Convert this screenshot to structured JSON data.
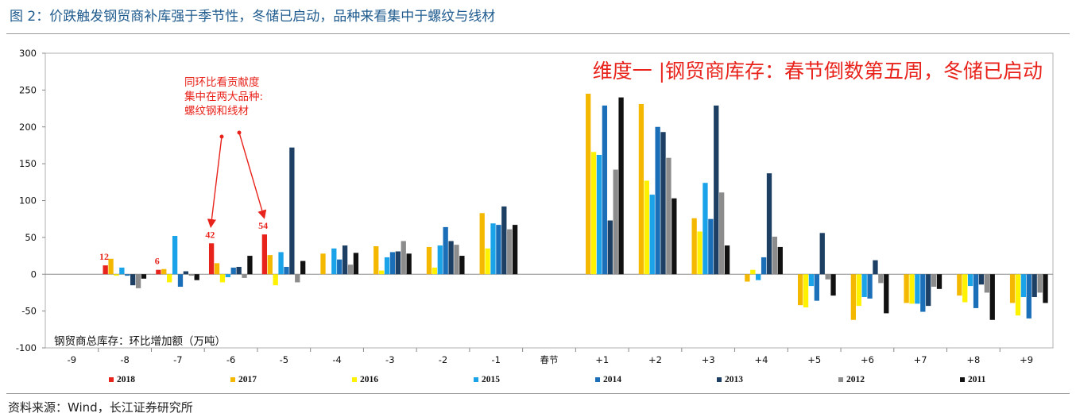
{
  "figure_title": "图 2：价跌触发钢贸商补库强于季节性，冬储已启动，品种来看集中于螺纹与线材",
  "source": "资料来源：Wind，长江证券研究所",
  "chart_data": {
    "type": "bar",
    "title": "维度一 |钢贸商库存：春节倒数第五周，冬储已启动",
    "ylabel_note": "钢贸商总库存：环比增加额（万吨）",
    "ylim": [
      -100,
      300
    ],
    "yticks": [
      -100,
      -50,
      0,
      50,
      100,
      150,
      200,
      250,
      300
    ],
    "categories": [
      "-9",
      "-8",
      "-7",
      "-6",
      "-5",
      "-4",
      "-3",
      "-2",
      "-1",
      "春节",
      "+1",
      "+2",
      "+3",
      "+4",
      "+5",
      "+6",
      "+7",
      "+8",
      "+9"
    ],
    "series": [
      {
        "name": "2018",
        "color": "#e8231b",
        "values": [
          null,
          12,
          6,
          42,
          54,
          null,
          null,
          null,
          null,
          null,
          null,
          null,
          null,
          null,
          null,
          null,
          null,
          null,
          null
        ]
      },
      {
        "name": "2017",
        "color": "#f5b800",
        "values": [
          null,
          21,
          7,
          15,
          26,
          28,
          38,
          37,
          83,
          null,
          245,
          231,
          76,
          -10,
          -42,
          -62,
          -39,
          -29,
          -39
        ]
      },
      {
        "name": "2016",
        "color": "#fff200",
        "values": [
          null,
          -2,
          -11,
          -11,
          -15,
          null,
          5,
          9,
          35,
          null,
          166,
          127,
          58,
          6,
          -45,
          -43,
          -40,
          -38,
          -56
        ]
      },
      {
        "name": "2015",
        "color": "#1aa3e8",
        "values": [
          null,
          9,
          52,
          -4,
          30,
          35,
          23,
          39,
          69,
          null,
          162,
          108,
          124,
          -8,
          -16,
          -31,
          -40,
          -16,
          -31
        ]
      },
      {
        "name": "2014",
        "color": "#1a6fb8",
        "values": [
          null,
          -2,
          -17,
          9,
          10,
          20,
          30,
          64,
          67,
          null,
          229,
          200,
          75,
          23,
          -36,
          -33,
          -51,
          -46,
          -60
        ]
      },
      {
        "name": "2013",
        "color": "#1c3f63",
        "values": [
          null,
          -15,
          4,
          10,
          172,
          39,
          31,
          45,
          92,
          null,
          73,
          193,
          229,
          137,
          56,
          19,
          -43,
          -14,
          -31
        ]
      },
      {
        "name": "2012",
        "color": "#8c8c8c",
        "values": [
          null,
          -19,
          -2,
          -5,
          -11,
          13,
          45,
          40,
          61,
          null,
          142,
          158,
          111,
          51,
          -7,
          -12,
          -17,
          -25,
          -25
        ]
      },
      {
        "name": "2011",
        "color": "#111111",
        "values": [
          null,
          -6,
          -8,
          25,
          18,
          29,
          28,
          25,
          67,
          null,
          240,
          103,
          39,
          37,
          -29,
          -53,
          -20,
          -62,
          -39
        ]
      }
    ],
    "data_labels": [
      {
        "series": "2018",
        "category": "-8",
        "text": "12"
      },
      {
        "series": "2018",
        "category": "-7",
        "text": "6"
      },
      {
        "series": "2018",
        "category": "-6",
        "text": "42"
      },
      {
        "series": "2018",
        "category": "-5",
        "text": "54"
      }
    ],
    "annotation": {
      "lines": [
        "同环比看贡献度",
        "集中在两大品种:",
        "螺纹钢和线材"
      ],
      "color": "#e8231b",
      "arrow_targets": [
        "-6",
        "-5"
      ]
    }
  }
}
